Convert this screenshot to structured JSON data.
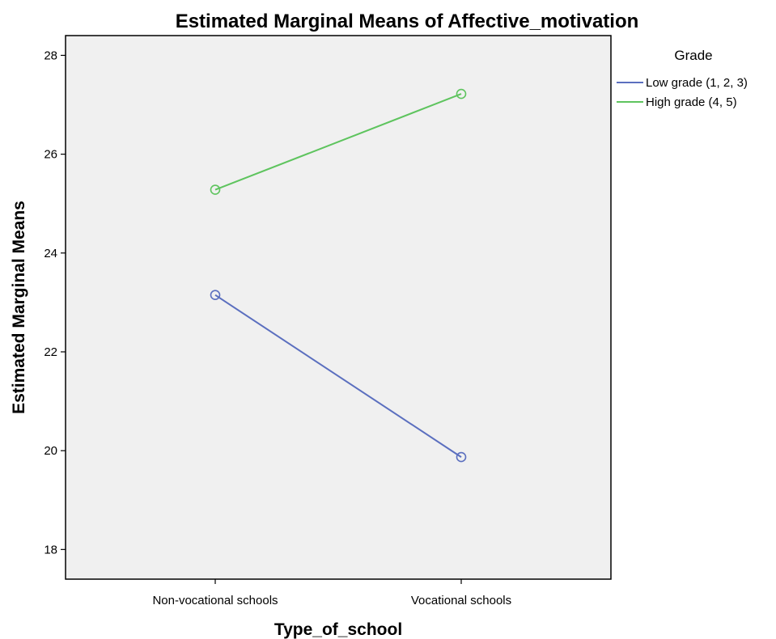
{
  "chart_data": {
    "type": "line",
    "title": "Estimated Marginal Means of Affective_motivation",
    "xlabel": "Type_of_school",
    "ylabel": "Estimated Marginal Means",
    "categories": [
      "Non-vocational schools",
      "Vocational schools"
    ],
    "ylim": [
      17.4,
      28.4
    ],
    "yticks": [
      18,
      20,
      22,
      24,
      26,
      28
    ],
    "grid": false,
    "markers": "open-circle",
    "legend": {
      "title": "Grade",
      "placement": "top-right-outside"
    },
    "series": [
      {
        "name": "Low grade (1, 2, 3)",
        "color": "#5b6fbf",
        "values": [
          23.15,
          19.87
        ]
      },
      {
        "name": "High grade (4, 5)",
        "color": "#5ec45e",
        "values": [
          25.28,
          27.22
        ]
      }
    ]
  },
  "colors": {
    "plot_background": "#f0f0f0",
    "frame": "#000000"
  }
}
